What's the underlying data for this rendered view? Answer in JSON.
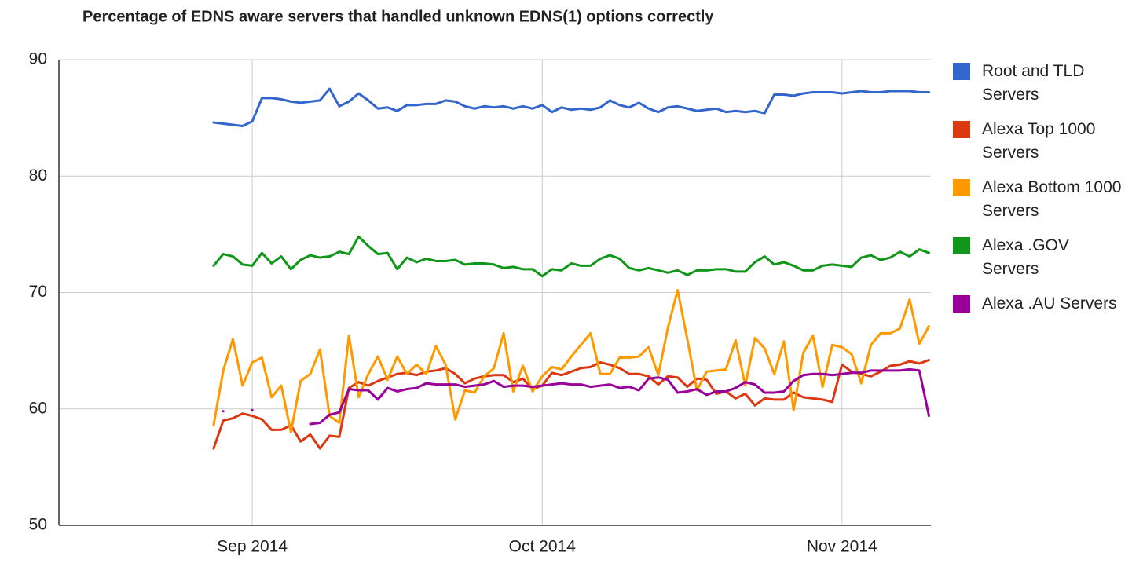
{
  "chart_data": {
    "type": "line",
    "title": "Percentage of EDNS aware servers that handled unknown EDNS(1) options correctly",
    "x": [
      -4,
      -3,
      -2,
      -1,
      0,
      1,
      2,
      3,
      4,
      5,
      6,
      7,
      8,
      9,
      10,
      11,
      12,
      13,
      14,
      15,
      16,
      17,
      18,
      19,
      20,
      21,
      22,
      23,
      24,
      25,
      26,
      27,
      28,
      29,
      30,
      31,
      32,
      33,
      34,
      35,
      36,
      37,
      38,
      39,
      40,
      41,
      42,
      43,
      44,
      45,
      46,
      47,
      48,
      49,
      50,
      51,
      52,
      53,
      54,
      55,
      56,
      57,
      58,
      59,
      60,
      61,
      62,
      63,
      64,
      65,
      66,
      67,
      68,
      69,
      70
    ],
    "xlim": [
      -20,
      70.2
    ],
    "xticks": [
      {
        "value": 0,
        "label": "Sep 2014"
      },
      {
        "value": 30,
        "label": "Oct 2014"
      },
      {
        "value": 61,
        "label": "Nov 2014"
      }
    ],
    "ylim": [
      50,
      90
    ],
    "yticks": [
      50,
      60,
      70,
      80,
      90
    ],
    "grid": true,
    "legend": "right",
    "series": [
      {
        "name": "Root and TLD Servers",
        "color": "#3366cc",
        "values": [
          84.6,
          84.5,
          84.4,
          84.3,
          84.7,
          86.7,
          86.7,
          86.6,
          86.4,
          86.3,
          86.4,
          86.5,
          87.5,
          86.0,
          86.4,
          87.1,
          86.5,
          85.8,
          85.9,
          85.6,
          86.1,
          86.1,
          86.2,
          86.2,
          86.5,
          86.4,
          86.0,
          85.8,
          86.0,
          85.9,
          86.0,
          85.8,
          86.0,
          85.8,
          86.1,
          85.5,
          85.9,
          85.7,
          85.8,
          85.7,
          85.9,
          86.5,
          86.1,
          85.9,
          86.3,
          85.8,
          85.5,
          85.9,
          86.0,
          85.8,
          85.6,
          85.7,
          85.8,
          85.5,
          85.6,
          85.5,
          85.6,
          85.4,
          87.0,
          87.0,
          86.9,
          87.1,
          87.2,
          87.2,
          87.2,
          87.1,
          87.2,
          87.3,
          87.2,
          87.2,
          87.3,
          87.3,
          87.3,
          87.2,
          87.2
        ]
      },
      {
        "name": "Alexa Top 1000 Servers",
        "color": "#dc3912",
        "values": [
          56.6,
          59.0,
          59.2,
          59.6,
          59.4,
          59.1,
          58.2,
          58.2,
          58.6,
          57.2,
          57.8,
          56.6,
          57.7,
          57.6,
          61.8,
          62.3,
          62.0,
          62.4,
          62.7,
          63.0,
          63.1,
          62.9,
          63.2,
          63.3,
          63.5,
          63.0,
          62.2,
          62.6,
          62.8,
          62.9,
          62.9,
          62.3,
          62.6,
          61.7,
          62.0,
          63.1,
          62.9,
          63.2,
          63.5,
          63.6,
          64.0,
          63.8,
          63.5,
          63.0,
          63.0,
          62.8,
          62.1,
          62.8,
          62.7,
          61.9,
          62.6,
          62.5,
          61.3,
          61.5,
          60.9,
          61.3,
          60.3,
          60.9,
          60.8,
          60.8,
          61.4,
          61.0,
          60.9,
          60.8,
          60.6,
          63.8,
          63.2,
          63.0,
          62.8,
          63.2,
          63.7,
          63.8,
          64.1,
          63.9,
          64.2
        ]
      },
      {
        "name": "Alexa Bottom 1000 Servers",
        "color": "#ff9900",
        "values": [
          58.6,
          63.3,
          66.0,
          62.0,
          64.0,
          64.4,
          61.0,
          62.0,
          58.0,
          62.4,
          63.0,
          65.1,
          59.4,
          58.8,
          66.3,
          61.0,
          63.0,
          64.5,
          62.5,
          64.5,
          63.0,
          63.8,
          63.0,
          65.4,
          63.8,
          59.1,
          61.6,
          61.4,
          62.8,
          63.5,
          66.5,
          61.5,
          63.7,
          61.5,
          62.8,
          63.6,
          63.4,
          64.5,
          65.5,
          66.5,
          63.0,
          63.0,
          64.4,
          64.4,
          64.5,
          65.3,
          62.9,
          67.0,
          70.2,
          66.0,
          61.6,
          63.2,
          63.3,
          63.4,
          65.9,
          62.0,
          66.1,
          65.2,
          63.0,
          65.8,
          59.9,
          64.8,
          66.3,
          61.9,
          65.5,
          65.3,
          64.7,
          62.2,
          65.5,
          66.5,
          66.5,
          66.9,
          69.4,
          65.6,
          67.1
        ]
      },
      {
        "name": "Alexa .GOV Servers",
        "color": "#109618",
        "values": [
          72.3,
          73.3,
          73.1,
          72.4,
          72.3,
          73.4,
          72.5,
          73.1,
          72.0,
          72.8,
          73.2,
          73.0,
          73.1,
          73.5,
          73.3,
          74.8,
          74.0,
          73.3,
          73.4,
          72.0,
          73.0,
          72.6,
          72.9,
          72.7,
          72.7,
          72.8,
          72.4,
          72.5,
          72.5,
          72.4,
          72.1,
          72.2,
          72.0,
          72.0,
          71.4,
          72.0,
          71.9,
          72.5,
          72.3,
          72.3,
          72.9,
          73.2,
          72.9,
          72.1,
          71.9,
          72.1,
          71.9,
          71.7,
          71.9,
          71.5,
          71.9,
          71.9,
          72.0,
          72.0,
          71.8,
          71.8,
          72.6,
          73.1,
          72.4,
          72.6,
          72.3,
          71.9,
          71.9,
          72.3,
          72.4,
          72.3,
          72.2,
          73.0,
          73.2,
          72.8,
          73.0,
          73.5,
          73.1,
          73.7,
          73.4
        ]
      },
      {
        "name": "Alexa .AU Servers",
        "color": "#990099",
        "values": [
          null,
          59.8,
          null,
          null,
          59.9,
          null,
          null,
          null,
          null,
          null,
          58.7,
          58.8,
          59.5,
          59.7,
          61.7,
          61.6,
          61.6,
          60.8,
          61.8,
          61.5,
          61.7,
          61.8,
          62.2,
          62.1,
          62.1,
          62.1,
          61.9,
          62.0,
          62.1,
          62.4,
          61.9,
          62.0,
          62.0,
          61.9,
          62.0,
          62.1,
          62.2,
          62.1,
          62.1,
          61.9,
          62.0,
          62.1,
          61.8,
          61.9,
          61.6,
          62.6,
          62.7,
          62.5,
          61.4,
          61.5,
          61.7,
          61.2,
          61.5,
          61.5,
          61.8,
          62.3,
          62.1,
          61.4,
          61.4,
          61.5,
          62.4,
          62.9,
          63.0,
          63.0,
          62.9,
          63.0,
          63.1,
          63.1,
          63.3,
          63.3,
          63.3,
          63.3,
          63.4,
          63.3,
          59.4
        ]
      }
    ]
  }
}
